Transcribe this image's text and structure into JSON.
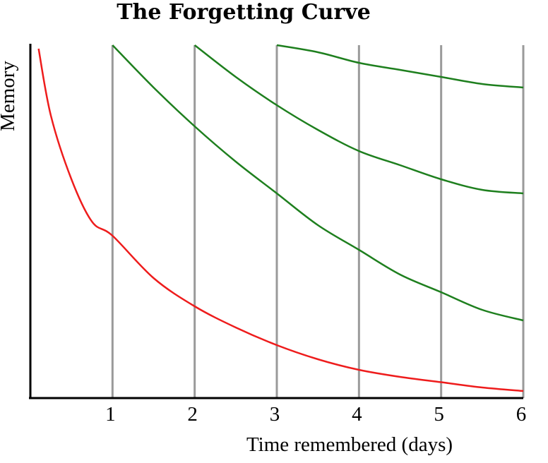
{
  "chart_data": {
    "type": "line",
    "title": "The Forgetting Curve",
    "xlabel": "Time remembered (days)",
    "ylabel": "Memory",
    "xlim": [
      0,
      6
    ],
    "ylim": [
      0,
      1
    ],
    "x_ticks": [
      "1",
      "2",
      "3",
      "4",
      "5",
      "6"
    ],
    "grid": "vertical lines at days 1-6",
    "colors": {
      "forgetting": "#ee1c1c",
      "review": "#1e7f1e",
      "grid": "#9a9a9a"
    },
    "series": [
      {
        "color": "#ee1c1c",
        "x": [
          0.1,
          0.25,
          0.5,
          0.75,
          1,
          1.5,
          2,
          2.5,
          3,
          3.5,
          4,
          4.5,
          5,
          5.5,
          6
        ],
        "y": [
          0.99,
          0.8,
          0.62,
          0.5,
          0.46,
          0.34,
          0.26,
          0.2,
          0.15,
          0.11,
          0.08,
          0.06,
          0.045,
          0.03,
          0.02
        ]
      },
      {
        "color": "#1e7f1e",
        "x": [
          1,
          1.5,
          2,
          2.5,
          3,
          3.5,
          4,
          4.5,
          5,
          5.5,
          6
        ],
        "y": [
          1.0,
          0.88,
          0.77,
          0.67,
          0.58,
          0.49,
          0.42,
          0.35,
          0.3,
          0.25,
          0.22
        ]
      },
      {
        "color": "#1e7f1e",
        "x": [
          2,
          2.5,
          3,
          3.5,
          4,
          4.5,
          5,
          5.5,
          6
        ],
        "y": [
          1.0,
          0.91,
          0.83,
          0.76,
          0.7,
          0.66,
          0.62,
          0.59,
          0.58
        ]
      },
      {
        "color": "#1e7f1e",
        "x": [
          3,
          3.5,
          4,
          4.5,
          5,
          5.5,
          6
        ],
        "y": [
          1.0,
          0.98,
          0.95,
          0.93,
          0.91,
          0.89,
          0.88
        ]
      }
    ]
  }
}
